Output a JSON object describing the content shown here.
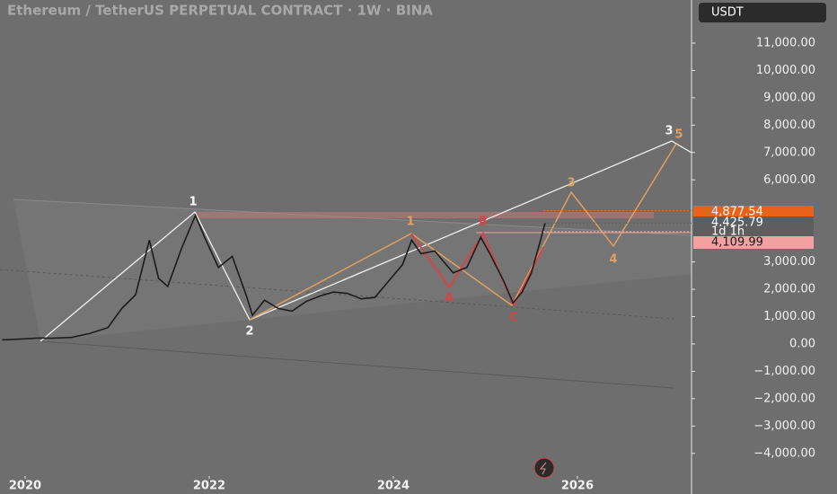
{
  "chart_data": {
    "type": "line",
    "title": "Ethereum / TetherUS PERPETUAL CONTRACT · 1W · BINA",
    "currency": "USDT",
    "color": "#1c1c1c",
    "x": [
      2019.75,
      2019.95,
      2020.15,
      2020.3,
      2020.5,
      2020.7,
      2020.9,
      2021.05,
      2021.2,
      2021.35,
      2021.45,
      2021.55,
      2021.7,
      2021.85,
      2021.95,
      2022.1,
      2022.25,
      2022.4,
      2022.47,
      2022.6,
      2022.75,
      2022.9,
      2023.05,
      2023.2,
      2023.35,
      2023.5,
      2023.65,
      2023.8,
      2023.95,
      2024.1,
      2024.2,
      2024.3,
      2024.45,
      2024.55,
      2024.65,
      2024.8,
      2024.95,
      2025.05,
      2025.2,
      2025.3,
      2025.4,
      2025.5,
      2025.6,
      2025.65
    ],
    "values": [
      150,
      180,
      220,
      210,
      240,
      380,
      600,
      1300,
      1800,
      3800,
      2400,
      2100,
      3500,
      4700,
      3900,
      2800,
      3200,
      1800,
      1050,
      1600,
      1300,
      1200,
      1550,
      1750,
      1900,
      1850,
      1650,
      1700,
      2300,
      2900,
      3800,
      3300,
      3400,
      3000,
      2600,
      2800,
      3900,
      3300,
      2300,
      1500,
      1900,
      2600,
      3800,
      4425.79
    ],
    "xlim": [
      2019.727,
      2027.24
    ],
    "ylim": [
      -4828,
      12576
    ],
    "xticks": [
      2020,
      2022,
      2024,
      2026
    ],
    "yticks": [
      {
        "value": -4000,
        "label": "−4,000.00"
      },
      {
        "value": -3000,
        "label": "−3,000.00"
      },
      {
        "value": -2000,
        "label": "−2,000.00"
      },
      {
        "value": -1000,
        "label": "−1,000.00"
      },
      {
        "value": 0,
        "label": "0.00"
      },
      {
        "value": 1000,
        "label": "1,000.00"
      },
      {
        "value": 2000,
        "label": "2,000.00"
      },
      {
        "value": 3000,
        "label": "3,000.00"
      },
      {
        "value": 6000,
        "label": "6,000.00"
      },
      {
        "value": 7000,
        "label": "7,000.00"
      },
      {
        "value": 8000,
        "label": "8,000.00"
      },
      {
        "value": 9000,
        "label": "9,000.00"
      },
      {
        "value": 10000,
        "label": "10,000.00"
      },
      {
        "value": 11000,
        "label": "11,000.00"
      }
    ],
    "price_labels": [
      {
        "value": 4877.54,
        "label": "4,877.54",
        "color": "#e8621a"
      },
      {
        "value": 4425.79,
        "label": "4,425.79",
        "color": "#5e5e5e"
      },
      {
        "value": 4109.99,
        "label": "4,109.99",
        "color": "#f2a0a0"
      }
    ],
    "countdown": "1d 1h",
    "annotations": [
      "1",
      "2",
      "1",
      "A",
      "B",
      "C",
      "3",
      "4",
      "5",
      "3"
    ]
  }
}
